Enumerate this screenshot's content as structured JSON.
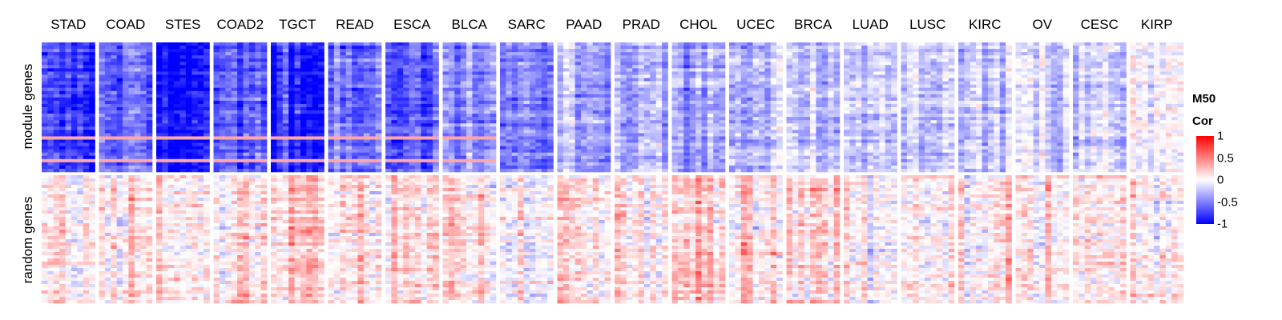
{
  "chart_data": {
    "type": "heatmap",
    "columns": [
      "STAD",
      "COAD",
      "STES",
      "COAD2",
      "TGCT",
      "READ",
      "ESCA",
      "BLCA",
      "SARC",
      "PAAD",
      "PRAD",
      "CHOL",
      "UCEC",
      "BRCA",
      "LUAD",
      "LUSC",
      "KIRC",
      "OV",
      "CESC",
      "KIRP"
    ],
    "row_groups": [
      "module genes",
      "random genes"
    ],
    "module_mean_correlation": [
      -0.8,
      -0.6,
      -0.8,
      -0.65,
      -0.85,
      -0.55,
      -0.6,
      -0.4,
      -0.5,
      -0.3,
      -0.35,
      -0.35,
      -0.3,
      -0.25,
      -0.2,
      -0.2,
      -0.22,
      -0.12,
      -0.12,
      -0.05
    ],
    "random_mean_correlation": [
      0.1,
      0.1,
      0.1,
      0.1,
      0.25,
      0.1,
      0.15,
      0.15,
      0.05,
      0.15,
      0.1,
      0.25,
      0.1,
      0.15,
      0.1,
      0.1,
      0.1,
      0.05,
      0.05,
      0.05
    ],
    "color_scale": {
      "min": -1,
      "mid": 0,
      "max": 1,
      "low_color": "#0000ff",
      "mid_color": "#ffffff",
      "high_color": "#ff0000"
    }
  },
  "legend": {
    "title_line1": "M50",
    "title_line2": "Cor",
    "ticks": [
      {
        "value": 1,
        "label": "1"
      },
      {
        "value": 0.5,
        "label": "0.5"
      },
      {
        "value": 0,
        "label": "0"
      },
      {
        "value": -0.5,
        "label": "-0.5"
      },
      {
        "value": -1,
        "label": "-1"
      }
    ]
  }
}
